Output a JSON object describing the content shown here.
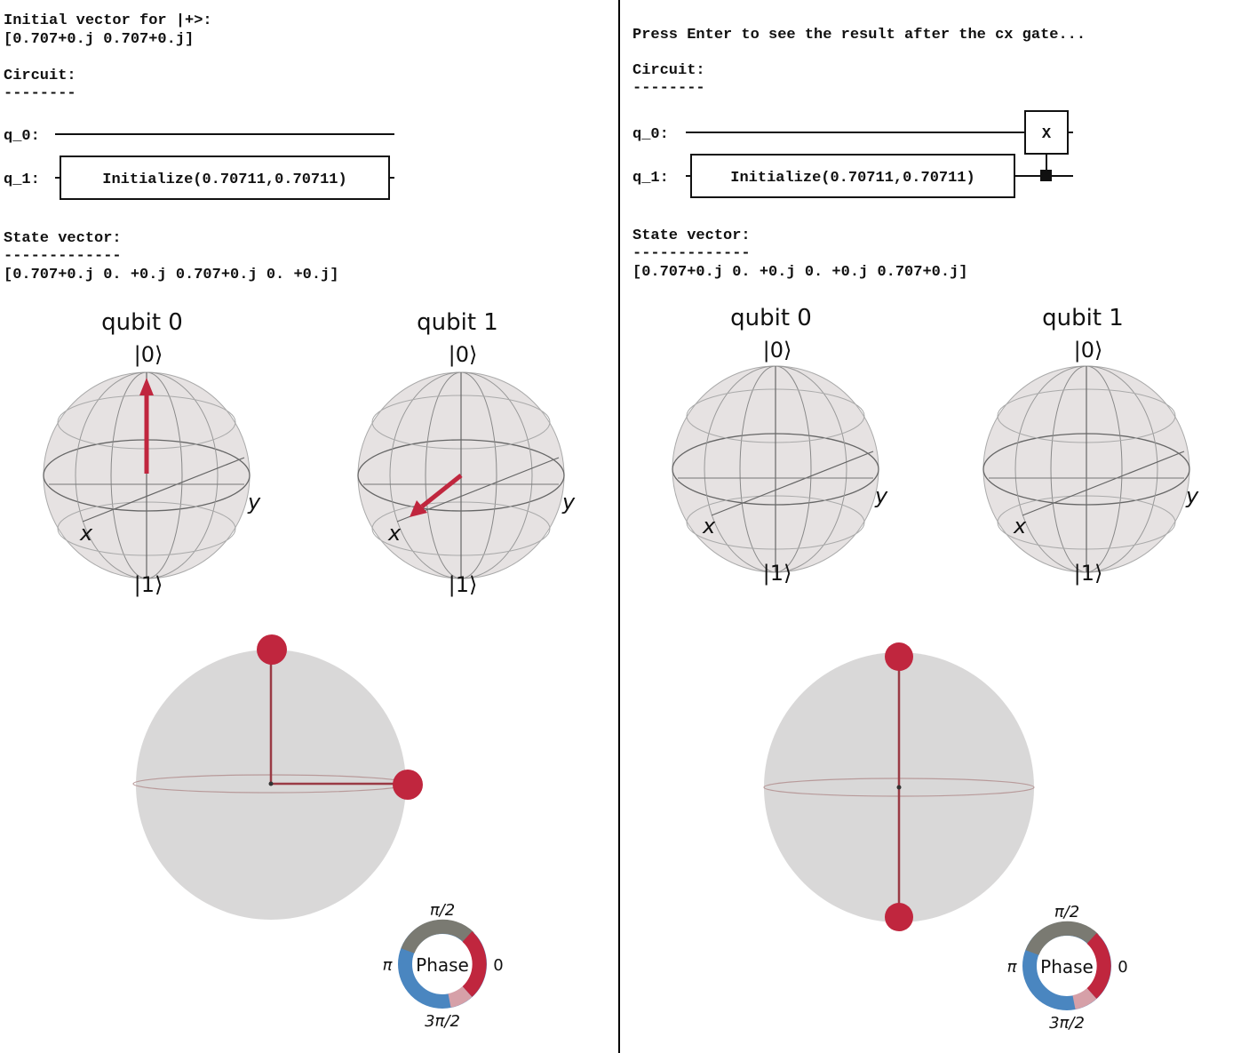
{
  "colors": {
    "arrow": "#c0263e",
    "sphere_gray": "#d8d8d8",
    "phase_red": "#c0263e",
    "phase_blue": "#4a86c0",
    "phase_gray": "#7a7a72"
  },
  "left": {
    "intro_line1": "Initial vector for |+>:",
    "intro_line2": "[0.707+0.j 0.707+0.j]",
    "circuit_title": "Circuit:",
    "circuit_underline": "--------",
    "q0_label": "q_0:",
    "q1_label": "q_1:",
    "init_gate": "Initialize(0.70711,0.70711)",
    "state_title": "State vector:",
    "state_underline": "-------------",
    "state_vector": "[0.707+0.j 0.   +0.j 0.707+0.j 0.   +0.j]",
    "bloch": [
      {
        "title": "qubit 0",
        "ket0": "|0⟩",
        "ket1": "|1⟩",
        "x": "x",
        "y": "y",
        "vector": [
          0,
          0,
          1
        ]
      },
      {
        "title": "qubit 1",
        "ket0": "|0⟩",
        "ket1": "|1⟩",
        "x": "x",
        "y": "y",
        "vector": [
          1,
          0,
          0
        ]
      }
    ],
    "qsphere": {
      "phase_label": "Phase",
      "pi_half": "π/2",
      "pi": "π",
      "three_pi_half": "3π/2",
      "zero": "0"
    }
  },
  "right": {
    "prompt": "Press Enter to see the result after the cx gate...",
    "circuit_title": "Circuit:",
    "circuit_underline": "--------",
    "q0_label": "q_0:",
    "q1_label": "q_1:",
    "init_gate": "Initialize(0.70711,0.70711)",
    "x_gate": "X",
    "state_title": "State vector:",
    "state_underline": "-------------",
    "state_vector": "[0.707+0.j 0.   +0.j 0.   +0.j 0.707+0.j]",
    "bloch": [
      {
        "title": "qubit 0",
        "ket0": "|0⟩",
        "ket1": "|1⟩",
        "x": "x",
        "y": "y",
        "vector": null
      },
      {
        "title": "qubit 1",
        "ket0": "|0⟩",
        "ket1": "|1⟩",
        "x": "x",
        "y": "y",
        "vector": null
      }
    ],
    "qsphere": {
      "phase_label": "Phase",
      "pi_half": "π/2",
      "pi": "π",
      "three_pi_half": "3π/2",
      "zero": "0"
    }
  }
}
